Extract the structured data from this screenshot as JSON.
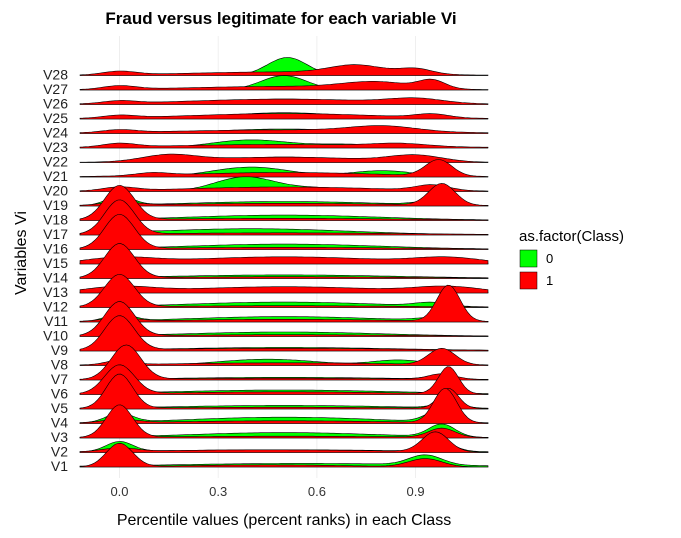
{
  "chart_data": {
    "type": "ridgeline",
    "title": "Fraud versus legitimate for each variable Vi",
    "xlabel": "Percentile values (percent ranks) in each Class",
    "ylabel": "Variables Vi",
    "xlim": [
      -0.12,
      1.12
    ],
    "x_ticks": [
      "0.0",
      "0.3",
      "0.6",
      "0.9"
    ],
    "x_tick_values": [
      0.0,
      0.3,
      0.6,
      0.9
    ],
    "categories": [
      "V1",
      "V2",
      "V3",
      "V4",
      "V5",
      "V6",
      "V7",
      "V8",
      "V9",
      "V10",
      "V11",
      "V12",
      "V13",
      "V14",
      "V15",
      "V16",
      "V17",
      "V18",
      "V19",
      "V20",
      "V21",
      "V22",
      "V23",
      "V24",
      "V25",
      "V26",
      "V27",
      "V28"
    ],
    "legend": {
      "title": "as.factor(Class)",
      "position": "right",
      "entries": [
        {
          "label": "0",
          "color": "#00ff00"
        },
        {
          "label": "1",
          "color": "#ff0000"
        }
      ]
    },
    "series": [
      {
        "name": "0",
        "color": "#00ff00",
        "densities": {
          "V1": [
            [
              0.0,
              0.5,
              0.03
            ],
            [
              0.55,
              0.2,
              0.4
            ],
            [
              0.93,
              0.55,
              0.05
            ]
          ],
          "V2": [
            [
              0.0,
              0.55,
              0.04
            ],
            [
              0.5,
              0.15,
              0.4
            ],
            [
              0.98,
              0.45,
              0.04
            ]
          ],
          "V3": [
            [
              0.0,
              0.5,
              0.04
            ],
            [
              0.5,
              0.3,
              0.3
            ],
            [
              0.98,
              0.7,
              0.04
            ]
          ],
          "V4": [
            [
              0.0,
              0.5,
              0.04
            ],
            [
              0.5,
              0.35,
              0.3
            ],
            [
              0.97,
              0.6,
              0.04
            ]
          ],
          "V5": [
            [
              0.0,
              0.5,
              0.04
            ],
            [
              0.5,
              0.2,
              0.35
            ],
            [
              1.0,
              0.3,
              0.04
            ]
          ],
          "V6": [
            [
              0.0,
              0.5,
              0.04
            ],
            [
              0.5,
              0.25,
              0.35
            ]
          ],
          "V7": [
            [
              0.0,
              0.5,
              0.04
            ],
            [
              0.5,
              0.15,
              0.35
            ],
            [
              0.98,
              0.25,
              0.04
            ]
          ],
          "V8": [
            [
              0.45,
              0.35,
              0.15
            ],
            [
              0.85,
              0.3,
              0.08
            ]
          ],
          "V9": [
            [
              0.0,
              0.5,
              0.04
            ],
            [
              0.5,
              0.2,
              0.35
            ]
          ],
          "V10": [
            [
              0.0,
              0.5,
              0.04
            ],
            [
              0.5,
              0.25,
              0.3
            ]
          ],
          "V11": [
            [
              0.0,
              0.4,
              0.04
            ],
            [
              0.5,
              0.3,
              0.3
            ],
            [
              0.95,
              0.15,
              0.05
            ]
          ],
          "V12": [
            [
              0.0,
              0.5,
              0.04
            ],
            [
              0.5,
              0.3,
              0.3
            ],
            [
              0.95,
              0.2,
              0.05
            ]
          ],
          "V13": [
            [
              0.0,
              0.5,
              0.04
            ],
            [
              0.5,
              0.25,
              0.35
            ]
          ],
          "V14": [
            [
              0.0,
              0.5,
              0.04
            ],
            [
              0.5,
              0.2,
              0.35
            ]
          ],
          "V15": [
            [
              0.0,
              0.5,
              0.04
            ],
            [
              0.5,
              0.25,
              0.35
            ]
          ],
          "V16": [
            [
              0.0,
              0.5,
              0.04
            ],
            [
              0.5,
              0.3,
              0.3
            ]
          ],
          "V17": [
            [
              0.0,
              0.5,
              0.04
            ],
            [
              0.4,
              0.35,
              0.3
            ]
          ],
          "V18": [
            [
              0.0,
              0.5,
              0.04
            ],
            [
              0.5,
              0.3,
              0.3
            ]
          ],
          "V19": [
            [
              0.0,
              0.5,
              0.04
            ],
            [
              0.5,
              0.25,
              0.3
            ],
            [
              0.95,
              0.2,
              0.05
            ]
          ],
          "V20": [
            [
              0.38,
              0.8,
              0.09
            ],
            [
              0.6,
              0.2,
              0.1
            ]
          ],
          "V21": [
            [
              0.4,
              0.55,
              0.12
            ],
            [
              0.8,
              0.35,
              0.1
            ]
          ],
          "V22": [
            [
              0.5,
              0.3,
              0.2
            ]
          ],
          "V23": [
            [
              0.4,
              0.45,
              0.12
            ],
            [
              0.7,
              0.2,
              0.1
            ]
          ],
          "V24": [
            [
              0.5,
              0.25,
              0.2
            ],
            [
              0.82,
              0.25,
              0.06
            ]
          ],
          "V25": [
            [
              0.5,
              0.35,
              0.18
            ]
          ],
          "V26": [
            [
              0.5,
              0.3,
              0.2
            ]
          ],
          "V27": [
            [
              0.5,
              0.8,
              0.07
            ]
          ],
          "V28": [
            [
              0.51,
              1.0,
              0.06
            ]
          ]
        }
      },
      {
        "name": "1",
        "color": "#ff0000",
        "densities": {
          "V1": [
            [
              0.0,
              1.3,
              0.04
            ],
            [
              0.45,
              0.12,
              0.25
            ],
            [
              0.93,
              0.45,
              0.05
            ]
          ],
          "V2": [
            [
              0.0,
              0.2,
              0.05
            ],
            [
              0.45,
              0.15,
              0.35
            ],
            [
              0.96,
              1.1,
              0.04
            ]
          ],
          "V3": [
            [
              0.0,
              1.8,
              0.04
            ],
            [
              0.5,
              0.1,
              0.4
            ],
            [
              0.98,
              0.5,
              0.04
            ]
          ],
          "V4": [
            [
              0.0,
              0.2,
              0.05
            ],
            [
              0.5,
              0.15,
              0.35
            ],
            [
              0.99,
              1.9,
              0.035
            ]
          ],
          "V5": [
            [
              0.0,
              1.9,
              0.04
            ],
            [
              0.5,
              0.1,
              0.4
            ],
            [
              1.0,
              1.1,
              0.03
            ]
          ],
          "V6": [
            [
              0.0,
              1.6,
              0.045
            ],
            [
              0.5,
              0.15,
              0.35
            ],
            [
              1.0,
              1.5,
              0.03
            ]
          ],
          "V7": [
            [
              0.02,
              1.9,
              0.045
            ],
            [
              0.5,
              0.1,
              0.4
            ],
            [
              0.98,
              0.3,
              0.04
            ]
          ],
          "V8": [
            [
              0.0,
              0.25,
              0.04
            ],
            [
              0.5,
              0.15,
              0.35
            ],
            [
              0.98,
              0.9,
              0.04
            ]
          ],
          "V9": [
            [
              0.0,
              1.9,
              0.045
            ],
            [
              0.5,
              0.15,
              0.4
            ]
          ],
          "V10": [
            [
              0.0,
              1.9,
              0.045
            ],
            [
              0.5,
              0.1,
              0.4
            ]
          ],
          "V11": [
            [
              0.0,
              0.2,
              0.05
            ],
            [
              0.5,
              0.15,
              0.35
            ],
            [
              1.0,
              2.0,
              0.035
            ]
          ],
          "V12": [
            [
              0.0,
              1.8,
              0.045
            ],
            [
              0.5,
              0.1,
              0.4
            ]
          ],
          "V13": [
            [
              0.0,
              0.3,
              0.1
            ],
            [
              0.5,
              0.35,
              0.3
            ],
            [
              1.0,
              0.3,
              0.1
            ]
          ],
          "V14": [
            [
              0.0,
              1.9,
              0.045
            ],
            [
              0.5,
              0.1,
              0.4
            ]
          ],
          "V15": [
            [
              0.0,
              0.3,
              0.1
            ],
            [
              0.5,
              0.4,
              0.3
            ],
            [
              1.0,
              0.3,
              0.1
            ]
          ],
          "V16": [
            [
              0.0,
              1.9,
              0.045
            ],
            [
              0.5,
              0.12,
              0.4
            ]
          ],
          "V17": [
            [
              0.0,
              1.9,
              0.045
            ],
            [
              0.5,
              0.12,
              0.4
            ]
          ],
          "V18": [
            [
              0.0,
              1.9,
              0.045
            ],
            [
              0.5,
              0.12,
              0.4
            ]
          ],
          "V19": [
            [
              0.0,
              0.2,
              0.05
            ],
            [
              0.5,
              0.15,
              0.35
            ],
            [
              0.98,
              1.2,
              0.04
            ]
          ],
          "V20": [
            [
              0.0,
              0.2,
              0.05
            ],
            [
              0.5,
              0.25,
              0.3
            ],
            [
              0.95,
              0.3,
              0.05
            ]
          ],
          "V21": [
            [
              0.1,
              0.15,
              0.05
            ],
            [
              0.5,
              0.25,
              0.3
            ],
            [
              0.97,
              0.9,
              0.04
            ]
          ],
          "V22": [
            [
              0.15,
              0.35,
              0.08
            ],
            [
              0.5,
              0.3,
              0.25
            ],
            [
              0.9,
              0.35,
              0.08
            ]
          ],
          "V23": [
            [
              0.0,
              0.2,
              0.05
            ],
            [
              0.5,
              0.2,
              0.35
            ],
            [
              0.85,
              0.15,
              0.08
            ]
          ],
          "V24": [
            [
              0.0,
              0.15,
              0.05
            ],
            [
              0.5,
              0.2,
              0.35
            ],
            [
              0.8,
              0.3,
              0.1
            ]
          ],
          "V25": [
            [
              0.0,
              0.15,
              0.05
            ],
            [
              0.5,
              0.3,
              0.3
            ],
            [
              0.95,
              0.2,
              0.05
            ]
          ],
          "V26": [
            [
              0.0,
              0.15,
              0.05
            ],
            [
              0.5,
              0.3,
              0.3
            ],
            [
              0.9,
              0.25,
              0.08
            ]
          ],
          "V27": [
            [
              0.0,
              0.2,
              0.05
            ],
            [
              0.5,
              0.2,
              0.3
            ],
            [
              0.78,
              0.35,
              0.1
            ],
            [
              0.95,
              0.45,
              0.04
            ]
          ],
          "V28": [
            [
              0.0,
              0.2,
              0.05
            ],
            [
              0.5,
              0.2,
              0.3
            ],
            [
              0.72,
              0.45,
              0.08
            ],
            [
              0.9,
              0.3,
              0.05
            ]
          ]
        }
      }
    ]
  }
}
